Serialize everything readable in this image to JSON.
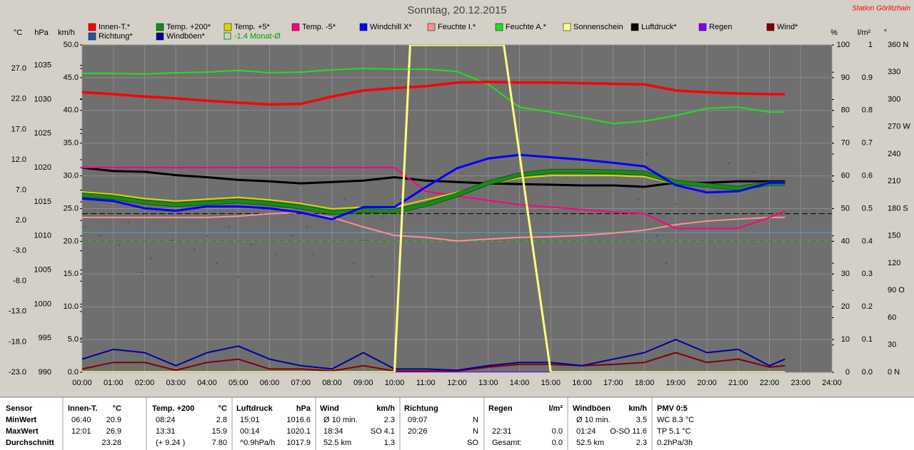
{
  "chart_data": {
    "type": "line",
    "title": "Sonntag, 20.12.2015",
    "station": "Station Görlitzhain",
    "xlim": [
      0,
      24
    ],
    "xticks": [
      {
        "value": 0,
        "label": "00:00"
      },
      {
        "value": 1,
        "label": "01:00"
      },
      {
        "value": 2,
        "label": "02:00"
      },
      {
        "value": 3,
        "label": "03:00"
      },
      {
        "value": 4,
        "label": "04:00"
      },
      {
        "value": 5,
        "label": "05:00"
      },
      {
        "value": 6,
        "label": "06:00"
      },
      {
        "value": 7,
        "label": "07:00"
      },
      {
        "value": 8,
        "label": "08:00"
      },
      {
        "value": 9,
        "label": "09:00"
      },
      {
        "value": 10,
        "label": "10:00"
      },
      {
        "value": 11,
        "label": "11:00"
      },
      {
        "value": 12,
        "label": "12:00"
      },
      {
        "value": 13,
        "label": "13:00"
      },
      {
        "value": 14,
        "label": "14:00"
      },
      {
        "value": 15,
        "label": "15:00"
      },
      {
        "value": 16,
        "label": "16:00"
      },
      {
        "value": 17,
        "label": "17:00"
      },
      {
        "value": 18,
        "label": "18:00"
      },
      {
        "value": 19,
        "label": "19:00"
      },
      {
        "value": 20,
        "label": "20:00"
      },
      {
        "value": 21,
        "label": "21:00"
      },
      {
        "value": 22,
        "label": "22:00"
      },
      {
        "value": 23,
        "label": "23:00"
      },
      {
        "value": 24,
        "label": "24:00"
      }
    ],
    "grid": true,
    "x": [
      0,
      1,
      2,
      3,
      4,
      5,
      6,
      7,
      8,
      9,
      10,
      11,
      12,
      13,
      14,
      15,
      16,
      17,
      18,
      19,
      20,
      21,
      22,
      22.5
    ],
    "axes": [
      {
        "unit": "°C",
        "lim": [
          -23,
          30.9
        ],
        "ticks": [
          {
            "value": -23,
            "label": "-23.0"
          },
          {
            "value": -18,
            "label": "-18.0"
          },
          {
            "value": -13,
            "label": "-13.0"
          },
          {
            "value": -8,
            "label": "-8.0"
          },
          {
            "value": -3,
            "label": "-3.0"
          },
          {
            "value": 2,
            "label": "2.0"
          },
          {
            "value": 7,
            "label": "7.0"
          },
          {
            "value": 12,
            "label": "12.0"
          },
          {
            "value": 17,
            "label": "17.0"
          },
          {
            "value": 22,
            "label": "22.0"
          },
          {
            "value": 27,
            "label": "27.0"
          }
        ]
      },
      {
        "unit": "hPa",
        "lim": [
          990,
          1038
        ],
        "ticks": [
          990,
          995,
          1000,
          1005,
          1010,
          1015,
          1020,
          1025,
          1030,
          1035
        ]
      },
      {
        "unit": "km/h",
        "lim": [
          0,
          50
        ],
        "ticks": [
          {
            "value": 0,
            "label": "0.0"
          },
          {
            "value": 5,
            "label": "5.0"
          },
          {
            "value": 10,
            "label": "10.0"
          },
          {
            "value": 15,
            "label": "15.0"
          },
          {
            "value": 20,
            "label": "20.0"
          },
          {
            "value": 25,
            "label": "25.0"
          },
          {
            "value": 30,
            "label": "30.0"
          },
          {
            "value": 35,
            "label": "35.0"
          },
          {
            "value": 40,
            "label": "40.0"
          },
          {
            "value": 45,
            "label": "45.0"
          },
          {
            "value": 50,
            "label": "50.0"
          }
        ]
      },
      {
        "unit": "%",
        "lim": [
          0,
          100
        ],
        "ticks": [
          0,
          10,
          20,
          30,
          40,
          50,
          60,
          70,
          80,
          90,
          100
        ]
      },
      {
        "unit": "l/m²",
        "lim": [
          0,
          1
        ],
        "ticks": [
          {
            "value": 0,
            "label": "0.0"
          },
          {
            "value": 0.1,
            "label": "0.1"
          },
          {
            "value": 0.2,
            "label": "0.2"
          },
          {
            "value": 0.3,
            "label": "0.3"
          },
          {
            "value": 0.4,
            "label": "0.4"
          },
          {
            "value": 0.5,
            "label": "0.5"
          },
          {
            "value": 0.6,
            "label": "0.6"
          },
          {
            "value": 0.7,
            "label": "0.7"
          },
          {
            "value": 0.8,
            "label": "0.8"
          },
          {
            "value": 0.9,
            "label": "0.9"
          },
          1
        ]
      },
      {
        "unit": "°",
        "lim": [
          0,
          360
        ],
        "ticks": [
          {
            "value": 0,
            "label": "0 N"
          },
          30,
          60,
          {
            "value": 90,
            "label": "90 O"
          },
          120,
          150,
          {
            "value": 180,
            "label": "180 S"
          },
          210,
          240,
          {
            "value": 270,
            "label": "270 W"
          },
          300,
          330,
          {
            "value": 360,
            "label": "360 N"
          }
        ]
      }
    ],
    "series": [
      {
        "name": "Innen-T.*",
        "color": "#ff0000",
        "axis": 0,
        "values": [
          23.1,
          22.8,
          22.4,
          22.1,
          21.7,
          21.4,
          21.1,
          21.2,
          22.4,
          23.4,
          23.8,
          24.1,
          24.7,
          24.8,
          24.7,
          24.7,
          24.6,
          24.5,
          24.4,
          23.4,
          23.1,
          22.9,
          22.8,
          22.8
        ]
      },
      {
        "name": "Temp. +200*",
        "color": "#1a8a1a",
        "axis": 0,
        "values": [
          6.2,
          5.8,
          5.0,
          4.6,
          4.9,
          5.2,
          4.8,
          4.2,
          3.3,
          3.6,
          3.5,
          4.6,
          6.2,
          8.2,
          9.5,
          10.1,
          10.1,
          10.0,
          9.8,
          8.3,
          7.8,
          7.3,
          8.1,
          8.1
        ]
      },
      {
        "name": "Temp. +5*",
        "color": "#d8d800",
        "axis": 0,
        "values": [
          6.7,
          6.3,
          5.6,
          5.2,
          5.5,
          5.8,
          5.4,
          4.8,
          3.9,
          4.2,
          4.2,
          5.4,
          6.6,
          8.0,
          9.0,
          9.4,
          9.4,
          9.4,
          9.2,
          8.0,
          8.0,
          7.5,
          8.2,
          8.2
        ]
      },
      {
        "name": "Temp. -5*",
        "color": "#ff0080",
        "axis": 0,
        "values": [
          10.7,
          10.7,
          10.7,
          10.7,
          10.7,
          10.7,
          10.7,
          10.7,
          10.7,
          10.7,
          10.7,
          6.8,
          6.0,
          5.3,
          4.6,
          4.2,
          3.8,
          3.4,
          3.1,
          0.7,
          0.7,
          0.7,
          2.5,
          3.5
        ]
      },
      {
        "name": "Windchill X*",
        "color": "#0000ff",
        "axis": 0,
        "values": [
          5.6,
          5.2,
          4.0,
          3.6,
          4.3,
          4.3,
          4.0,
          3.3,
          2.2,
          4.2,
          4.2,
          7.5,
          10.6,
          12.2,
          12.8,
          12.4,
          12.0,
          11.5,
          10.9,
          7.8,
          6.6,
          6.8,
          8.2,
          8.2
        ]
      },
      {
        "name": "Feuchte I.*",
        "color": "#ff9090",
        "axis": 3,
        "values": [
          47.3,
          47.3,
          47.3,
          47.3,
          47.3,
          47.7,
          48.4,
          48.8,
          47.3,
          44.4,
          41.8,
          41.2,
          40.1,
          40.7,
          41.2,
          41.4,
          41.8,
          42.5,
          43.4,
          45.1,
          46.2,
          46.8,
          47.3,
          47.3
        ]
      },
      {
        "name": "Feuchte A.*",
        "color": "#20e020",
        "axis": 3,
        "values": [
          91.3,
          91.3,
          91.1,
          91.5,
          91.7,
          92.2,
          91.5,
          91.7,
          92.4,
          92.8,
          92.6,
          92.6,
          91.9,
          88.0,
          81.0,
          79.5,
          77.8,
          76.0,
          76.7,
          78.4,
          80.6,
          81.0,
          79.5,
          79.5
        ]
      },
      {
        "name": "Sonnenschein",
        "color": "#ffff80",
        "axis": 3,
        "x": [
          0,
          10.0,
          10.5,
          13.5,
          15.0,
          22.5
        ],
        "values": [
          0,
          0,
          100,
          100,
          0,
          0
        ]
      },
      {
        "name": "Luftdruck*",
        "color": "#000000",
        "axis": 1,
        "values": [
          1020.0,
          1019.5,
          1019.4,
          1018.9,
          1018.6,
          1018.2,
          1018.0,
          1017.7,
          1017.9,
          1018.1,
          1018.6,
          1018.1,
          1017.9,
          1017.7,
          1017.6,
          1017.5,
          1017.4,
          1017.4,
          1017.2,
          1017.8,
          1017.8,
          1018.0,
          1018.0,
          1018.0
        ]
      },
      {
        "name": "Regen",
        "color": "#8000ff",
        "axis": 4,
        "x": [
          0,
          22.5
        ],
        "values": [
          0,
          0
        ]
      },
      {
        "name": "Wind*",
        "color": "#800000",
        "axis": 2,
        "values": [
          0.5,
          1.5,
          1.5,
          0.3,
          1.5,
          2.0,
          0.5,
          0.5,
          0.2,
          1.0,
          0.2,
          0.2,
          0.2,
          0.8,
          1.2,
          1.2,
          1.0,
          1.2,
          1.5,
          3.0,
          1.5,
          2.0,
          0.8,
          1.0
        ]
      },
      {
        "name": "Richtung*",
        "color": "#1e5a96",
        "axis": 5,
        "kind": "scatter",
        "x": [
          0.1,
          0.3,
          0.6,
          0.9,
          1.2,
          1.5,
          1.9,
          2.2,
          2.5,
          2.9,
          3.2,
          3.6,
          4.0,
          4.3,
          4.7,
          5.0,
          5.4,
          5.8,
          6.2,
          6.7,
          7.2,
          7.4,
          8.4,
          8.7,
          9.0,
          9.3,
          9.6,
          10.2,
          17.8,
          18.1,
          18.4,
          18.7,
          19.0,
          19.4,
          19.9,
          20.3,
          20.7,
          21.1,
          21.5,
          21.8
        ],
        "values": [
          160,
          170,
          150,
          175,
          140,
          165,
          110,
          125,
          185,
          145,
          175,
          135,
          150,
          120,
          160,
          105,
          140,
          180,
          130,
          150,
          160,
          130,
          190,
          120,
          145,
          105,
          170,
          190,
          190,
          240,
          150,
          120,
          185,
          165,
          200,
          175,
          230,
          200,
          220,
          175
        ]
      },
      {
        "name": "Windböen*",
        "color": "#0000a0",
        "axis": 2,
        "values": [
          2.0,
          3.5,
          3.0,
          1.0,
          3.0,
          4.0,
          2.0,
          1.0,
          0.5,
          3.0,
          0.5,
          0.5,
          0.3,
          1.0,
          1.5,
          1.5,
          1.0,
          2.0,
          3.0,
          5.0,
          3.0,
          3.5,
          1.0,
          2.0
        ]
      }
    ],
    "reference_lines": [
      {
        "value": 1013.25,
        "axis": 1,
        "color": "#000000",
        "dashed": true
      },
      {
        "value": 0,
        "axis": 0,
        "color": "#50a8c8",
        "dashed": false
      },
      {
        "name": "-1.4 Monat-Ø",
        "value": -1.4,
        "axis": 0,
        "color": "#00a000",
        "dashed": true
      }
    ]
  },
  "table": {
    "header": "Sensor",
    "row_labels": [
      "MinWert",
      "MaxWert",
      "Durchschnitt"
    ],
    "columns": [
      {
        "name": "Innen-T.",
        "unit": "°C",
        "rows": [
          [
            "06:40",
            "20.9"
          ],
          [
            "12:01",
            "26.9"
          ],
          [
            null,
            "23.28"
          ]
        ]
      },
      {
        "name": "Temp. +200",
        "unit": "°C",
        "rows": [
          [
            "08:24",
            "2.8"
          ],
          [
            "13:31",
            "15.9"
          ],
          [
            "(+ 9.24 )",
            "7.80"
          ]
        ]
      },
      {
        "name": "Luftdruck",
        "unit": "hPa",
        "rows": [
          [
            "15:01",
            "1016.6"
          ],
          [
            "00:14",
            "1020.1"
          ],
          [
            "^0.9hPa/h",
            "1017.9"
          ]
        ]
      },
      {
        "name": "Wind",
        "unit": "km/h",
        "rows": [
          [
            "Ø 10 min.",
            "2.3"
          ],
          [
            "18:34",
            "SO 4.1"
          ],
          [
            "52.5 km",
            "1.3"
          ]
        ]
      },
      {
        "name": "Richtung",
        "rows": [
          [
            "09:07",
            "N"
          ],
          [
            "20:26",
            "N"
          ],
          [
            null,
            "SO"
          ]
        ]
      },
      {
        "name": "Regen",
        "unit": "l/m²",
        "rows": [
          [
            null,
            null
          ],
          [
            "22:31",
            "0.0"
          ],
          [
            "Gesamt:",
            "0.0"
          ]
        ]
      },
      {
        "name": "Windböen",
        "unit": "km/h",
        "rows": [
          [
            "Ø 10 min.",
            "3.5"
          ],
          [
            "01:24",
            "O-SO 11.6"
          ],
          [
            "52.5 km",
            "2.3"
          ]
        ]
      },
      {
        "name": "PMV 0:5",
        "rows": [
          [
            "WC 8.3 °C"
          ],
          [
            "TP 5.1 °C"
          ],
          [
            "0.2hPa/3h"
          ]
        ]
      }
    ]
  }
}
